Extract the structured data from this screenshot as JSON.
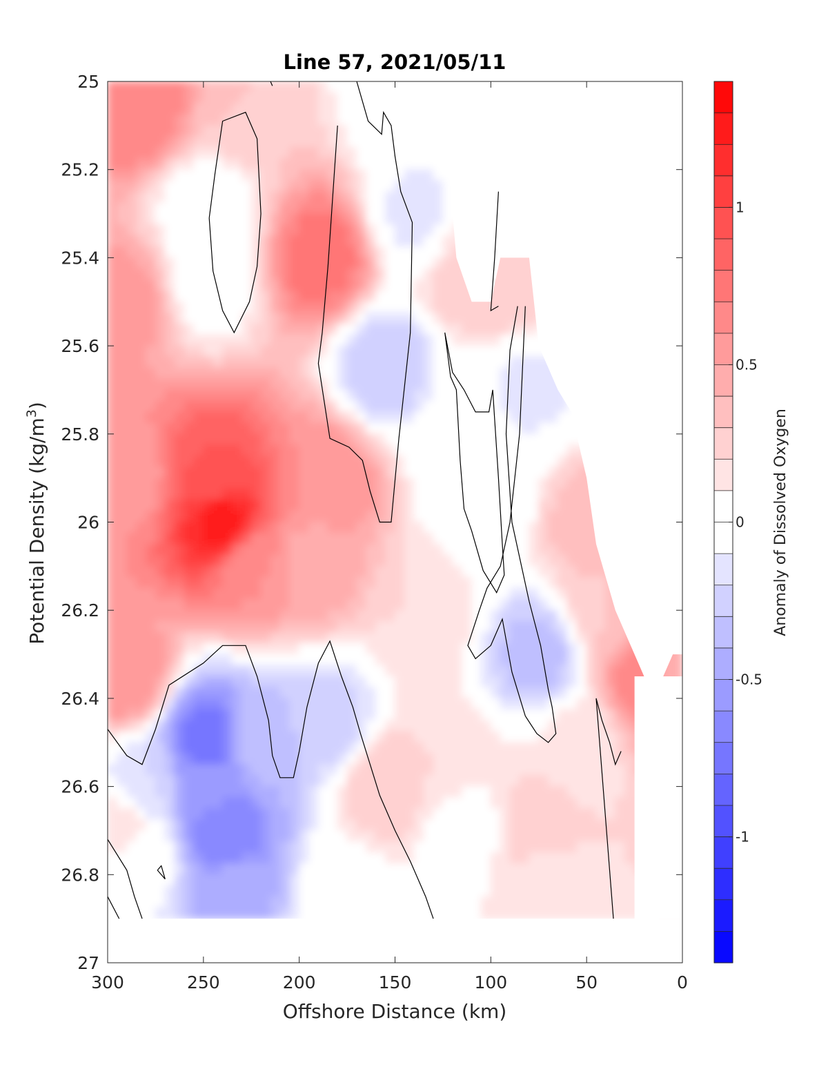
{
  "chart_data": {
    "type": "heatmap",
    "subtype": "filled-contour",
    "title": "Line 57, 2021/05/11",
    "xlabel": "Offshore Distance (km)",
    "ylabel_main": "Potential Density (kg/m",
    "ylabel_sup": "3",
    "ylabel_close": ")",
    "xlim": [
      300,
      0
    ],
    "x_reversed": true,
    "ylim": [
      25,
      27
    ],
    "y_reversed": true,
    "xticks": [
      300,
      250,
      200,
      150,
      100,
      50,
      0
    ],
    "yticks": [
      25,
      25.2,
      25.4,
      25.6,
      25.8,
      26,
      26.2,
      26.4,
      26.6,
      26.8,
      27
    ],
    "xtick_labels": [
      "300",
      "250",
      "200",
      "150",
      "100",
      "50",
      "0"
    ],
    "ytick_labels": [
      "25",
      "25.2",
      "25.4",
      "25.6",
      "25.8",
      "26",
      "26.2",
      "26.4",
      "26.6",
      "26.8",
      "27"
    ],
    "colorbar": {
      "label": "Anomaly of Dissolved Oxygen",
      "range": [
        -1.4,
        1.4
      ],
      "levels": 28,
      "ticks": [
        -1,
        -0.5,
        0,
        0.5,
        1
      ],
      "tick_labels": [
        "-1",
        "-0.5",
        "0",
        "0.5",
        "1"
      ],
      "colormap": "blue-white-red",
      "neg_color": "#0000ff",
      "zero_color": "#ffffff",
      "pos_color": "#ff0000"
    },
    "data_extent": {
      "x_max": 300,
      "x_min": 5,
      "y_min": 25,
      "y_max": 26.9
    },
    "features": [
      {
        "x": 285,
        "y": 25.05,
        "value": 0.7
      },
      {
        "x": 290,
        "y": 25.5,
        "value": 0.55
      },
      {
        "x": 288,
        "y": 25.9,
        "value": 0.55
      },
      {
        "x": 290,
        "y": 26.35,
        "value": 0.6
      },
      {
        "x": 240,
        "y": 26.0,
        "value": 1.25
      },
      {
        "x": 245,
        "y": 25.9,
        "value": 0.9
      },
      {
        "x": 225,
        "y": 26.1,
        "value": 0.6
      },
      {
        "x": 188,
        "y": 25.4,
        "value": 0.75
      },
      {
        "x": 185,
        "y": 25.9,
        "value": 0.6
      },
      {
        "x": 192,
        "y": 26.1,
        "value": 0.45
      },
      {
        "x": 225,
        "y": 25.05,
        "value": 0.3
      },
      {
        "x": 248,
        "y": 25.3,
        "value": 0.0
      },
      {
        "x": 248,
        "y": 25.45,
        "value": 0.0
      },
      {
        "x": 150,
        "y": 25.0,
        "value": 0.0
      },
      {
        "x": 155,
        "y": 25.65,
        "value": -0.3
      },
      {
        "x": 140,
        "y": 25.3,
        "value": -0.12
      },
      {
        "x": 248,
        "y": 26.5,
        "value": -0.75
      },
      {
        "x": 240,
        "y": 26.7,
        "value": -0.7
      },
      {
        "x": 250,
        "y": 26.6,
        "value": -0.55
      },
      {
        "x": 235,
        "y": 26.85,
        "value": -0.45
      },
      {
        "x": 220,
        "y": 26.5,
        "value": -0.35
      },
      {
        "x": 280,
        "y": 26.6,
        "value": -0.2
      },
      {
        "x": 185,
        "y": 26.45,
        "value": -0.25
      },
      {
        "x": 75,
        "y": 26.3,
        "value": -0.35
      },
      {
        "x": 80,
        "y": 25.7,
        "value": -0.12
      },
      {
        "x": 102,
        "y": 25.95,
        "value": -0.1
      },
      {
        "x": 115,
        "y": 25.8,
        "value": 0.0
      },
      {
        "x": 90,
        "y": 25.45,
        "value": 0.3
      },
      {
        "x": 112,
        "y": 25.45,
        "value": 0.25
      },
      {
        "x": 50,
        "y": 26.0,
        "value": 0.35
      },
      {
        "x": 40,
        "y": 26.2,
        "value": 0.3
      },
      {
        "x": 18,
        "y": 26.35,
        "value": 0.7
      },
      {
        "x": 7,
        "y": 26.35,
        "value": 0.45
      },
      {
        "x": 155,
        "y": 26.6,
        "value": 0.3
      },
      {
        "x": 125,
        "y": 26.55,
        "value": 0.2
      },
      {
        "x": 75,
        "y": 26.7,
        "value": 0.28
      },
      {
        "x": 135,
        "y": 26.2,
        "value": 0.2
      },
      {
        "x": 70,
        "y": 26.8,
        "value": 0.15
      },
      {
        "x": 115,
        "y": 26.7,
        "value": 0.0
      },
      {
        "x": 55,
        "y": 26.5,
        "value": 0.12
      },
      {
        "x": 283,
        "y": 26.75,
        "value": 0.0
      },
      {
        "x": 290,
        "y": 26.85,
        "value": -0.1
      },
      {
        "x": 292,
        "y": 26.7,
        "value": 0.2
      },
      {
        "x": 175,
        "y": 26.85,
        "value": 0.05
      }
    ],
    "zero_contours": [
      [
        [
          300,
          26.47
        ],
        [
          290,
          26.53
        ],
        [
          282,
          26.55
        ],
        [
          275,
          26.47
        ],
        [
          268,
          26.37
        ],
        [
          250,
          26.32
        ],
        [
          240,
          26.28
        ],
        [
          228,
          26.28
        ],
        [
          222,
          26.35
        ],
        [
          216,
          26.45
        ],
        [
          214,
          26.53
        ],
        [
          210,
          26.58
        ],
        [
          203,
          26.58
        ],
        [
          200,
          26.52
        ],
        [
          196,
          26.42
        ],
        [
          190,
          26.32
        ],
        [
          184,
          26.27
        ],
        [
          178,
          26.35
        ],
        [
          172,
          26.42
        ],
        [
          168,
          26.48
        ],
        [
          163,
          26.55
        ],
        [
          158,
          26.62
        ],
        [
          150,
          26.7
        ],
        [
          142,
          26.77
        ],
        [
          134,
          26.85
        ],
        [
          130,
          26.9
        ]
      ],
      [
        [
          300,
          26.85
        ],
        [
          294,
          26.9
        ]
      ],
      [
        [
          300,
          26.72
        ],
        [
          290,
          26.79
        ],
        [
          286,
          26.85
        ],
        [
          282,
          26.9
        ]
      ],
      [
        [
          274,
          26.79
        ],
        [
          270,
          26.81
        ],
        [
          272,
          26.78
        ],
        [
          274,
          26.79
        ]
      ],
      [
        [
          247,
          25.31
        ],
        [
          244,
          25.21
        ],
        [
          240,
          25.09
        ],
        [
          228,
          25.07
        ],
        [
          222,
          25.13
        ],
        [
          220,
          25.3
        ],
        [
          222,
          25.42
        ],
        [
          226,
          25.5
        ],
        [
          234,
          25.57
        ],
        [
          240,
          25.52
        ],
        [
          245,
          25.43
        ],
        [
          247,
          25.31
        ]
      ],
      [
        [
          215,
          25.0
        ],
        [
          214,
          25.01
        ]
      ],
      [
        [
          170,
          25.0
        ],
        [
          164,
          25.09
        ],
        [
          157,
          25.12
        ],
        [
          156,
          25.07
        ],
        [
          152,
          25.1
        ],
        [
          150,
          25.17
        ],
        [
          147,
          25.25
        ],
        [
          141,
          25.32
        ],
        [
          142,
          25.57
        ],
        [
          148,
          25.81
        ],
        [
          152,
          26.0
        ],
        [
          158,
          26.0
        ],
        [
          163,
          25.93
        ],
        [
          167,
          25.86
        ],
        [
          174,
          25.83
        ],
        [
          184,
          25.81
        ],
        [
          190,
          25.64
        ],
        [
          188,
          25.57
        ],
        [
          185,
          25.42
        ],
        [
          180,
          25.1
        ]
      ],
      [
        [
          124,
          25.57
        ],
        [
          120,
          25.66
        ],
        [
          114,
          25.7
        ],
        [
          108,
          25.75
        ],
        [
          101,
          25.75
        ],
        [
          99,
          25.7
        ],
        [
          96,
          25.9
        ],
        [
          94,
          26.05
        ],
        [
          93,
          26.12
        ],
        [
          97,
          26.16
        ],
        [
          104,
          26.11
        ],
        [
          110,
          26.02
        ],
        [
          114,
          25.97
        ],
        [
          116,
          25.86
        ],
        [
          118,
          25.7
        ],
        [
          121,
          25.67
        ],
        [
          124,
          25.57
        ]
      ],
      [
        [
          86,
          25.51
        ],
        [
          90,
          25.61
        ],
        [
          92,
          25.8
        ],
        [
          89,
          26.0
        ],
        [
          84,
          26.1
        ],
        [
          80,
          26.18
        ],
        [
          77,
          26.23
        ],
        [
          74,
          26.28
        ],
        [
          70,
          26.38
        ],
        [
          68,
          26.42
        ],
        [
          66,
          26.48
        ],
        [
          70,
          26.5
        ],
        [
          76,
          26.48
        ],
        [
          82,
          26.44
        ],
        [
          89,
          26.34
        ],
        [
          94,
          26.22
        ],
        [
          100,
          26.28
        ],
        [
          108,
          26.31
        ],
        [
          112,
          26.28
        ],
        [
          106,
          26.2
        ],
        [
          102,
          26.15
        ],
        [
          95,
          26.1
        ],
        [
          90,
          26.0
        ],
        [
          85,
          25.8
        ],
        [
          82,
          25.51
        ]
      ],
      [
        [
          96,
          25.25
        ],
        [
          98,
          25.4
        ],
        [
          100,
          25.52
        ],
        [
          96,
          25.51
        ]
      ],
      [
        [
          45,
          26.4
        ],
        [
          42,
          26.45
        ],
        [
          38,
          26.5
        ],
        [
          35,
          26.55
        ],
        [
          32,
          26.52
        ]
      ],
      [
        [
          45,
          26.4
        ],
        [
          36,
          26.9
        ]
      ]
    ]
  }
}
